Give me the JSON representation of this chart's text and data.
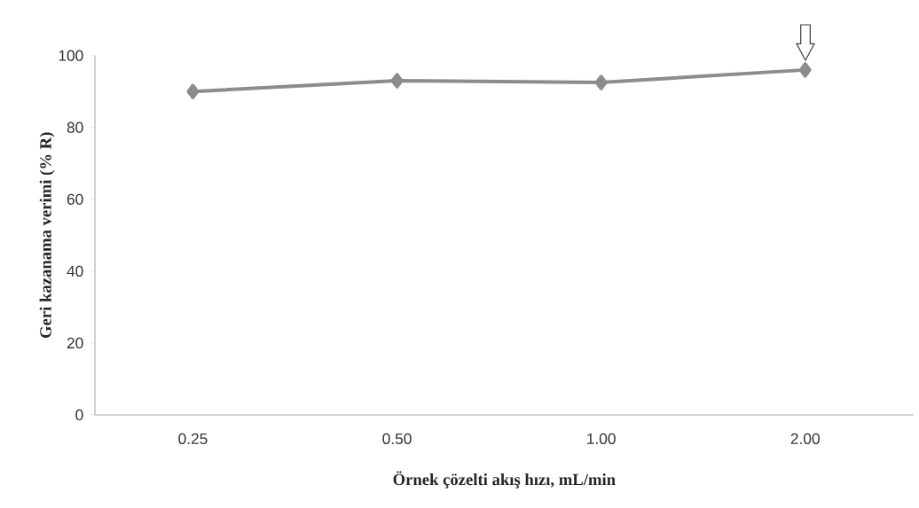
{
  "chart_data": {
    "type": "line",
    "xlabel": "Örnek çözelti akış hızı, mL/min",
    "ylabel": "Geri kazanama verimi (% R)",
    "categories": [
      "0.25",
      "0.50",
      "1.00",
      "2.00"
    ],
    "values": [
      90,
      93,
      92.5,
      96
    ],
    "color": "#8c8c8c",
    "marker": "diamond",
    "line_style": "solid",
    "grid": false,
    "ylim": [
      0,
      100
    ],
    "yticks": [
      0,
      20,
      40,
      60,
      80,
      100
    ]
  }
}
